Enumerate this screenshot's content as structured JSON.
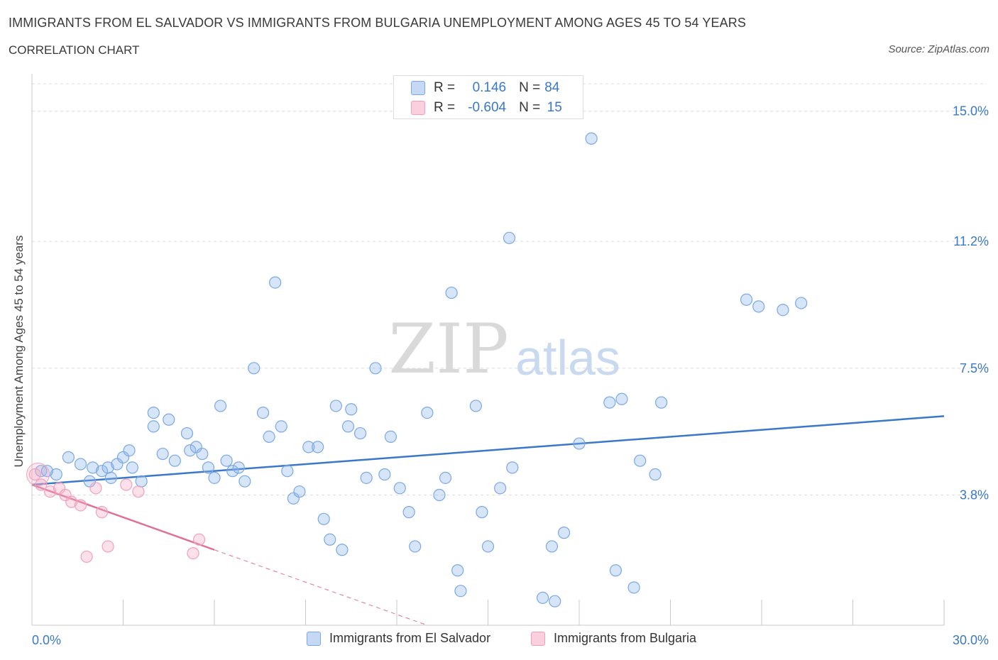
{
  "header": {
    "title": "IMMIGRANTS FROM EL SALVADOR VS IMMIGRANTS FROM BULGARIA UNEMPLOYMENT AMONG AGES 45 TO 54 YEARS",
    "subtitle": "CORRELATION CHART",
    "source": "Source: ZipAtlas.com"
  },
  "watermark": {
    "zip": "ZIP",
    "atlas": "atlas"
  },
  "legend": {
    "rows": [
      {
        "r_label": "R =",
        "r_value": "0.146",
        "n_label": "N =",
        "n_value": "84"
      },
      {
        "r_label": "R =",
        "r_value": "-0.604",
        "n_label": "N =",
        "n_value": "15"
      }
    ]
  },
  "chart_data": {
    "type": "scatter",
    "title": "IMMIGRANTS FROM EL SALVADOR VS IMMIGRANTS FROM BULGARIA UNEMPLOYMENT AMONG AGES 45 TO 54 YEARS",
    "subtitle": "CORRELATION CHART",
    "xlabel": "",
    "ylabel": "Unemployment Among Ages 45 to 54 years",
    "xlim": [
      0,
      30
    ],
    "ylim": [
      0.0,
      15.8
    ],
    "x_tick_labels": [
      {
        "value": 0,
        "label": "0.0%"
      },
      {
        "value": 30,
        "label": "30.0%"
      }
    ],
    "y_tick_labels": [
      {
        "value": 3.8,
        "label": "3.8%"
      },
      {
        "value": 7.5,
        "label": "7.5%"
      },
      {
        "value": 11.2,
        "label": "11.2%"
      },
      {
        "value": 15.0,
        "label": "15.0%"
      }
    ],
    "grid": {
      "horizontal": true,
      "vertical": false,
      "style": "dashed"
    },
    "legend_position": "bottom",
    "colors": {
      "el_salvador": "#7aa8e6",
      "el_salvador_line": "#3a78c8",
      "bulgaria": "#f0a0bc",
      "bulgaria_line": "#e07098"
    },
    "series": [
      {
        "name": "Immigrants from El Salvador",
        "color": "#7aa8e6",
        "trend": {
          "x0": 0,
          "y0": 4.1,
          "x1": 30,
          "y1": 6.1
        },
        "points": [
          [
            0.3,
            4.5
          ],
          [
            0.5,
            4.5
          ],
          [
            0.8,
            4.4
          ],
          [
            1.2,
            4.9
          ],
          [
            1.6,
            4.7
          ],
          [
            1.9,
            4.2
          ],
          [
            2.0,
            4.6
          ],
          [
            2.3,
            4.5
          ],
          [
            2.5,
            4.6
          ],
          [
            2.6,
            4.3
          ],
          [
            2.8,
            4.7
          ],
          [
            3.0,
            4.9
          ],
          [
            3.2,
            5.1
          ],
          [
            3.3,
            4.6
          ],
          [
            3.6,
            4.2
          ],
          [
            4.0,
            5.8
          ],
          [
            4.0,
            6.2
          ],
          [
            4.3,
            5.0
          ],
          [
            4.5,
            6.0
          ],
          [
            4.7,
            4.8
          ],
          [
            5.1,
            5.6
          ],
          [
            5.2,
            5.1
          ],
          [
            5.4,
            5.2
          ],
          [
            5.6,
            5.0
          ],
          [
            5.8,
            4.6
          ],
          [
            6.0,
            4.3
          ],
          [
            6.2,
            6.4
          ],
          [
            6.4,
            4.8
          ],
          [
            6.6,
            4.5
          ],
          [
            6.8,
            4.6
          ],
          [
            7.0,
            4.2
          ],
          [
            7.3,
            7.5
          ],
          [
            7.6,
            6.2
          ],
          [
            7.8,
            5.5
          ],
          [
            8.0,
            10.0
          ],
          [
            8.2,
            5.8
          ],
          [
            8.4,
            4.5
          ],
          [
            8.6,
            3.7
          ],
          [
            8.8,
            3.9
          ],
          [
            9.1,
            5.2
          ],
          [
            9.4,
            5.2
          ],
          [
            9.6,
            3.1
          ],
          [
            9.8,
            2.5
          ],
          [
            10.0,
            6.4
          ],
          [
            10.2,
            2.2
          ],
          [
            10.4,
            5.8
          ],
          [
            10.5,
            6.3
          ],
          [
            10.8,
            5.6
          ],
          [
            11.0,
            4.3
          ],
          [
            11.3,
            7.5
          ],
          [
            11.6,
            4.4
          ],
          [
            11.8,
            5.5
          ],
          [
            12.1,
            4.0
          ],
          [
            12.4,
            3.3
          ],
          [
            12.6,
            2.3
          ],
          [
            13.0,
            6.2
          ],
          [
            13.4,
            3.8
          ],
          [
            13.6,
            4.3
          ],
          [
            13.8,
            9.7
          ],
          [
            14.0,
            1.6
          ],
          [
            14.1,
            1.0
          ],
          [
            14.6,
            6.4
          ],
          [
            14.8,
            3.3
          ],
          [
            15.0,
            2.3
          ],
          [
            15.4,
            4.0
          ],
          [
            15.7,
            11.3
          ],
          [
            15.8,
            4.6
          ],
          [
            16.8,
            0.8
          ],
          [
            17.1,
            2.3
          ],
          [
            17.2,
            0.7
          ],
          [
            17.5,
            2.7
          ],
          [
            18.0,
            5.3
          ],
          [
            18.4,
            14.2
          ],
          [
            19.0,
            6.5
          ],
          [
            19.2,
            1.6
          ],
          [
            19.4,
            6.6
          ],
          [
            19.8,
            1.1
          ],
          [
            20.0,
            4.8
          ],
          [
            20.5,
            4.4
          ],
          [
            20.7,
            6.5
          ],
          [
            23.5,
            9.5
          ],
          [
            23.9,
            9.3
          ],
          [
            24.7,
            9.2
          ],
          [
            25.3,
            9.4
          ]
        ]
      },
      {
        "name": "Immigrants from Bulgaria",
        "color": "#f0a0bc",
        "trend": {
          "x0": 0,
          "y0": 4.1,
          "x1": 6.0,
          "y1": 2.2,
          "dashed_to": [
            13.0,
            0.0
          ]
        },
        "points": [
          [
            0.1,
            4.4
          ],
          [
            0.3,
            4.1
          ],
          [
            0.6,
            3.9
          ],
          [
            0.9,
            4.0
          ],
          [
            1.1,
            3.8
          ],
          [
            1.3,
            3.6
          ],
          [
            1.6,
            3.5
          ],
          [
            1.8,
            2.0
          ],
          [
            2.1,
            4.0
          ],
          [
            2.3,
            3.3
          ],
          [
            2.5,
            2.3
          ],
          [
            3.1,
            4.1
          ],
          [
            3.5,
            3.9
          ],
          [
            5.3,
            2.1
          ],
          [
            5.5,
            2.5
          ]
        ]
      }
    ]
  },
  "bottom_legend": {
    "items": [
      {
        "label": "Immigrants from El Salvador",
        "color": "#7aa8e6"
      },
      {
        "label": "Immigrants from Bulgaria",
        "color": "#f0a0bc"
      }
    ]
  }
}
